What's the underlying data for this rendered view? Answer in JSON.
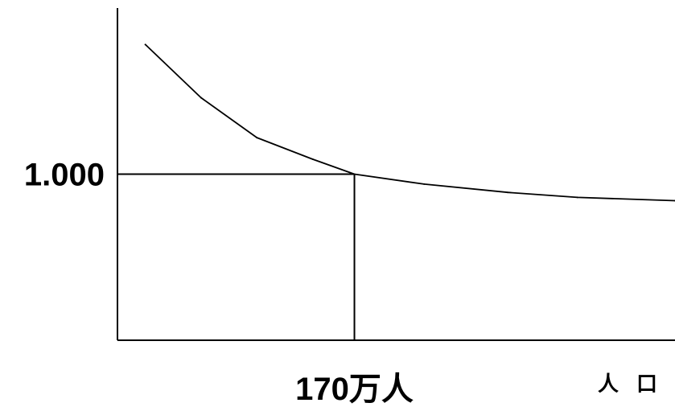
{
  "chart_data": {
    "type": "line",
    "title": "",
    "xlabel": "人口",
    "ylabel": "",
    "y_reference": {
      "value": 1.0,
      "label": "1.000"
    },
    "x_reference": {
      "value": 170,
      "label": "170万人"
    },
    "xlim": [
      0,
      400
    ],
    "ylim": [
      0.5,
      1.5
    ],
    "grid": false,
    "series": [
      {
        "x": [
          20,
          60,
          100,
          140,
          170,
          220,
          280,
          330,
          400
        ],
        "y": [
          1.39,
          1.23,
          1.11,
          1.045,
          1.0,
          0.97,
          0.945,
          0.93,
          0.92
        ]
      }
    ]
  }
}
